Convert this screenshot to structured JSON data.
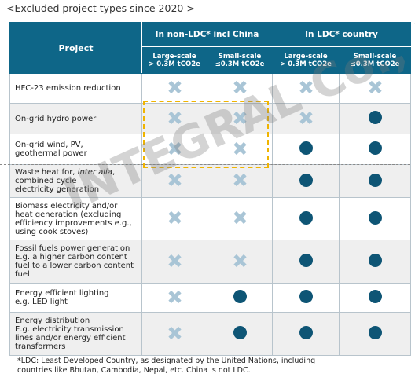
{
  "title": "<Excluded project types since 2020 >",
  "header": {
    "project": "Project",
    "groups": [
      "In non-LDC* incl China",
      "In LDC* country"
    ],
    "sub": [
      [
        "Large-scale",
        "> 0.3M tCO2e"
      ],
      [
        "Small-scale",
        "≤0.3M tCO2e"
      ],
      [
        "Large-scale",
        "> 0.3M tCO2e"
      ],
      [
        "Small-scale",
        "≤0.3M tCO2e"
      ]
    ]
  },
  "rows": [
    [
      "HFC-23 emission reduction"
    ],
    [
      "On-grid hydro power"
    ],
    [
      "On-grid wind, PV,",
      "geothermal power"
    ],
    [
      "Waste heat for, ",
      "inter alia",
      ",",
      "combined cycle",
      "electricity generation"
    ],
    [
      "Biomass electricity and/or",
      "heat generation  (excluding",
      "efficiency improvements  e.g.,",
      "using cook stoves)"
    ],
    [
      "Fossil fuels power generation",
      "E.g. a higher carbon content",
      "fuel to a lower carbon content",
      "fuel"
    ],
    [
      "Energy efficient lighting",
      "e.g. LED light"
    ],
    [
      "Energy distribution",
      "E.g. electricity transmission",
      "lines and/or energy efficient",
      "transformers"
    ]
  ],
  "footnote": [
    "*LDC: Least Developed Country, as designated by the United Nations, including",
    "countries like Bhutan, Cambodia, Nepal, etc. China is not LDC."
  ],
  "watermark": "INTEGRAL Co., Ltd"
}
